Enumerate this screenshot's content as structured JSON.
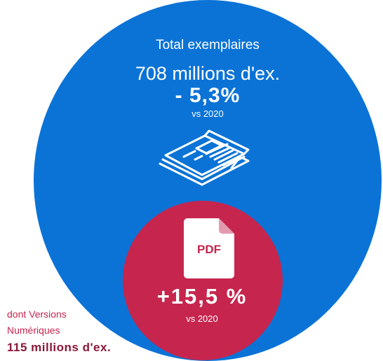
{
  "colors": {
    "blue": "#0b73d6",
    "crimson": "#c6254e",
    "white": "#ffffff"
  },
  "total": {
    "label": "Total exemplaires",
    "value": "708 millions d'ex.",
    "change": "- 5,3%",
    "comparison": "vs 2020",
    "icon": "newspaper-icon"
  },
  "digital": {
    "icon": "pdf-file-icon",
    "icon_text": "PDF",
    "change": "+15,5 %",
    "comparison": "vs 2020",
    "label_line1": "dont Versions",
    "label_line2": "Numériques",
    "value": "115 millions d'ex."
  }
}
